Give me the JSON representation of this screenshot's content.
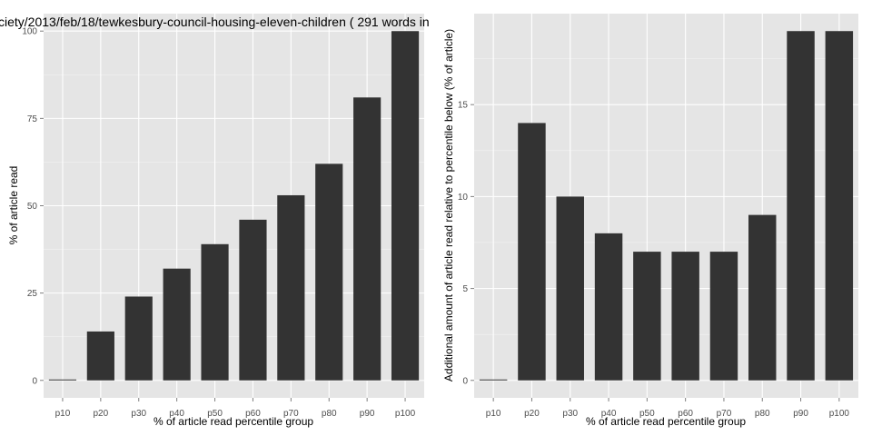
{
  "title": "ciety/2013/feb/18/tewkesbury-council-housing-eleven-children ( 291 words in",
  "colors": {
    "panel_bg": "#e5e5e5",
    "grid_major": "#ffffff",
    "grid_minor": "#f2f2f2",
    "bar": "#333333"
  },
  "chart_data": [
    {
      "type": "bar",
      "categories": [
        "p10",
        "p20",
        "p30",
        "p40",
        "p50",
        "p60",
        "p70",
        "p80",
        "p90",
        "p100"
      ],
      "values": [
        0,
        14,
        24,
        32,
        39,
        46,
        53,
        62,
        81,
        100
      ],
      "xlabel": "% of article read percentile group",
      "ylabel": "% of article read",
      "ylim": [
        0,
        100
      ],
      "yticks": [
        0,
        25,
        50,
        75,
        100
      ],
      "grid": true
    },
    {
      "type": "bar",
      "categories": [
        "p10",
        "p20",
        "p30",
        "p40",
        "p50",
        "p60",
        "p70",
        "p80",
        "p90",
        "p100"
      ],
      "values": [
        0,
        14,
        10,
        8,
        7,
        7,
        7,
        9,
        19,
        19
      ],
      "xlabel": "% of article read percentile group",
      "ylabel": "Additional amount of article read relative to percentile below (% of article)",
      "ylim": [
        0,
        19
      ],
      "yticks": [
        0,
        5,
        10,
        15
      ],
      "grid": true
    }
  ]
}
